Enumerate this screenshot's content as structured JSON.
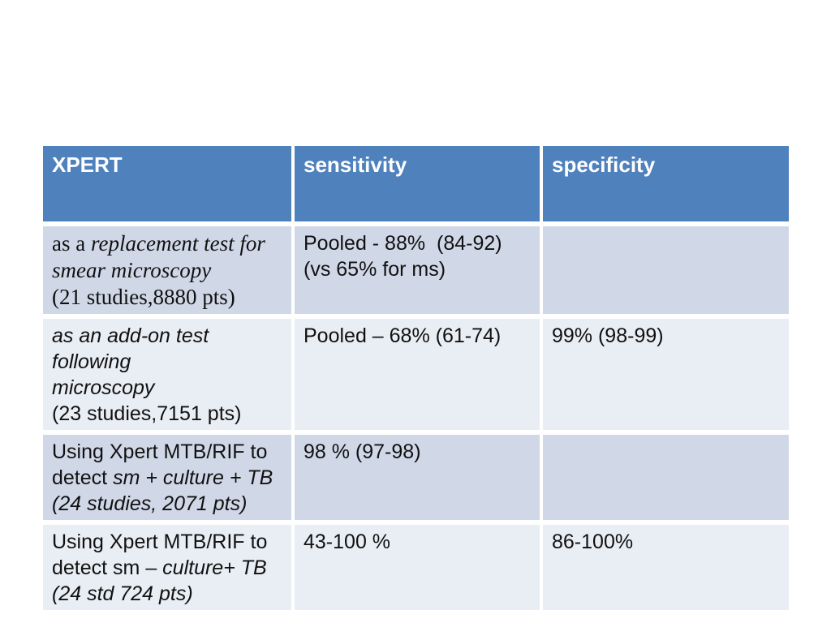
{
  "slide": {
    "background_color": "#ffffff"
  },
  "table": {
    "header": {
      "bg_color": "#4f81bd",
      "text_color": "#ffffff",
      "cells": [
        "XPERT",
        "sensitivity",
        "specificity"
      ]
    },
    "band_colors": {
      "dark": "#d0d8e8",
      "light": "#e9edf4"
    },
    "body_text_color": "#111111",
    "rows": [
      {
        "band": "dark",
        "cells": [
          {
            "font": "serif",
            "segments": [
              {
                "t": "as a "
              },
              {
                "t": "replacement test for",
                "i": true
              },
              {
                "br": true
              },
              {
                "t": "smear microscopy",
                "i": true
              },
              {
                "br": true
              },
              {
                "t": "(21 studies,8880 pts)"
              }
            ]
          },
          {
            "segments": [
              {
                "t": "Pooled - 88%  (84-92)"
              },
              {
                "br": true
              },
              {
                "t": "(vs 65% for ms)"
              }
            ]
          },
          {
            "segments": []
          }
        ]
      },
      {
        "band": "light",
        "cells": [
          {
            "segments": [
              {
                "t": "as an add-on test following",
                "i": true
              },
              {
                "br": true
              },
              {
                "t": "microscopy",
                "i": true
              },
              {
                "br": true
              },
              {
                "t": "(23 studies,7151 pts)"
              }
            ]
          },
          {
            "segments": [
              {
                "t": "Pooled – 68% (61-74)"
              }
            ]
          },
          {
            "segments": [
              {
                "t": "99% (98-99)"
              }
            ]
          }
        ]
      },
      {
        "band": "dark",
        "cells": [
          {
            "segments": [
              {
                "t": "Using Xpert MTB/RIF to"
              },
              {
                "br": true
              },
              {
                "t": "detect "
              },
              {
                "t": "sm + culture + TB",
                "i": true
              },
              {
                "br": true
              },
              {
                "t": "(24 studies, 2071 pts)",
                "i": true
              }
            ]
          },
          {
            "segments": [
              {
                "t": "98 % (97-98)"
              }
            ]
          },
          {
            "segments": []
          }
        ]
      },
      {
        "band": "light",
        "cells": [
          {
            "segments": [
              {
                "t": "Using Xpert MTB/RIF to"
              },
              {
                "br": true
              },
              {
                "t": "detect sm – "
              },
              {
                "t": "culture+ TB",
                "i": true
              },
              {
                "br": true
              },
              {
                "t": "(24 std 724 pts)",
                "i": true
              }
            ]
          },
          {
            "segments": [
              {
                "t": "43-100 %"
              }
            ]
          },
          {
            "segments": [
              {
                "t": "86-100%"
              }
            ]
          }
        ]
      }
    ]
  }
}
